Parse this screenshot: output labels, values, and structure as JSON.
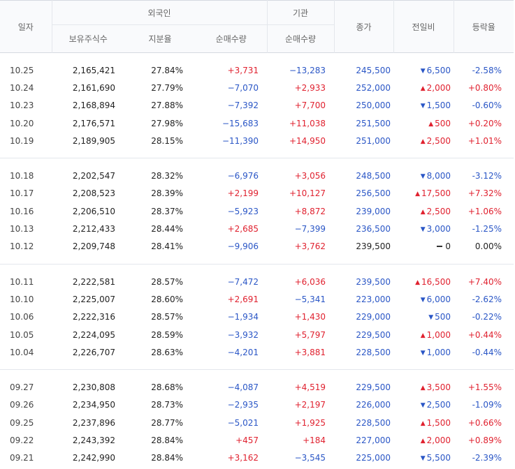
{
  "headers": {
    "date": "일자",
    "foreign_group": "외국인",
    "institution_group": "기관",
    "close": "종가",
    "change": "전일비",
    "rate": "등락율",
    "foreign_holdings": "보유주식수",
    "foreign_ratio": "지분율",
    "foreign_net": "순매수량",
    "inst_net": "순매수량"
  },
  "groups": [
    [
      {
        "date": "10.25",
        "holdings": "2,165,421",
        "ratio": "27.84%",
        "fnet": "+3,731",
        "fdir": "up",
        "inet": "−13,283",
        "idir": "down",
        "close": "245,500",
        "cdir": "down",
        "change": "6,500",
        "chdir": "down",
        "rate": "-2.58%",
        "rdir": "down"
      },
      {
        "date": "10.24",
        "holdings": "2,161,690",
        "ratio": "27.79%",
        "fnet": "−7,070",
        "fdir": "down",
        "inet": "+2,933",
        "idir": "up",
        "close": "252,000",
        "cdir": "up",
        "change": "2,000",
        "chdir": "up",
        "rate": "+0.80%",
        "rdir": "up"
      },
      {
        "date": "10.23",
        "holdings": "2,168,894",
        "ratio": "27.88%",
        "fnet": "−7,392",
        "fdir": "down",
        "inet": "+7,700",
        "idir": "up",
        "close": "250,000",
        "cdir": "down",
        "change": "1,500",
        "chdir": "down",
        "rate": "-0.60%",
        "rdir": "down"
      },
      {
        "date": "10.20",
        "holdings": "2,176,571",
        "ratio": "27.98%",
        "fnet": "−15,683",
        "fdir": "down",
        "inet": "+11,038",
        "idir": "up",
        "close": "251,500",
        "cdir": "up",
        "change": "500",
        "chdir": "up",
        "rate": "+0.20%",
        "rdir": "up"
      },
      {
        "date": "10.19",
        "holdings": "2,189,905",
        "ratio": "28.15%",
        "fnet": "−11,390",
        "fdir": "down",
        "inet": "+14,950",
        "idir": "up",
        "close": "251,000",
        "cdir": "up",
        "change": "2,500",
        "chdir": "up",
        "rate": "+1.01%",
        "rdir": "up"
      }
    ],
    [
      {
        "date": "10.18",
        "holdings": "2,202,547",
        "ratio": "28.32%",
        "fnet": "−6,976",
        "fdir": "down",
        "inet": "+3,056",
        "idir": "up",
        "close": "248,500",
        "cdir": "down",
        "change": "8,000",
        "chdir": "down",
        "rate": "-3.12%",
        "rdir": "down"
      },
      {
        "date": "10.17",
        "holdings": "2,208,523",
        "ratio": "28.39%",
        "fnet": "+2,199",
        "fdir": "up",
        "inet": "+10,127",
        "idir": "up",
        "close": "256,500",
        "cdir": "up",
        "change": "17,500",
        "chdir": "up",
        "rate": "+7.32%",
        "rdir": "up"
      },
      {
        "date": "10.16",
        "holdings": "2,206,510",
        "ratio": "28.37%",
        "fnet": "−5,923",
        "fdir": "down",
        "inet": "+8,872",
        "idir": "up",
        "close": "239,000",
        "cdir": "up",
        "change": "2,500",
        "chdir": "up",
        "rate": "+1.06%",
        "rdir": "up"
      },
      {
        "date": "10.13",
        "holdings": "2,212,433",
        "ratio": "28.44%",
        "fnet": "+2,685",
        "fdir": "up",
        "inet": "−7,399",
        "idir": "down",
        "close": "236,500",
        "cdir": "down",
        "change": "3,000",
        "chdir": "down",
        "rate": "-1.25%",
        "rdir": "down"
      },
      {
        "date": "10.12",
        "holdings": "2,209,748",
        "ratio": "28.41%",
        "fnet": "−9,906",
        "fdir": "down",
        "inet": "+3,762",
        "idir": "up",
        "close": "239,500",
        "cdir": "flat",
        "change": "0",
        "chdir": "flat",
        "rate": "0.00%",
        "rdir": "flat"
      }
    ],
    [
      {
        "date": "10.11",
        "holdings": "2,222,581",
        "ratio": "28.57%",
        "fnet": "−7,472",
        "fdir": "down",
        "inet": "+6,036",
        "idir": "up",
        "close": "239,500",
        "cdir": "up",
        "change": "16,500",
        "chdir": "up",
        "rate": "+7.40%",
        "rdir": "up"
      },
      {
        "date": "10.10",
        "holdings": "2,225,007",
        "ratio": "28.60%",
        "fnet": "+2,691",
        "fdir": "up",
        "inet": "−5,341",
        "idir": "down",
        "close": "223,000",
        "cdir": "down",
        "change": "6,000",
        "chdir": "down",
        "rate": "-2.62%",
        "rdir": "down"
      },
      {
        "date": "10.06",
        "holdings": "2,222,316",
        "ratio": "28.57%",
        "fnet": "−1,934",
        "fdir": "down",
        "inet": "+1,430",
        "idir": "up",
        "close": "229,000",
        "cdir": "down",
        "change": "500",
        "chdir": "down",
        "rate": "-0.22%",
        "rdir": "down"
      },
      {
        "date": "10.05",
        "holdings": "2,224,095",
        "ratio": "28.59%",
        "fnet": "−3,932",
        "fdir": "down",
        "inet": "+5,797",
        "idir": "up",
        "close": "229,500",
        "cdir": "up",
        "change": "1,000",
        "chdir": "up",
        "rate": "+0.44%",
        "rdir": "up"
      },
      {
        "date": "10.04",
        "holdings": "2,226,707",
        "ratio": "28.63%",
        "fnet": "−4,201",
        "fdir": "down",
        "inet": "+3,881",
        "idir": "up",
        "close": "228,500",
        "cdir": "down",
        "change": "1,000",
        "chdir": "down",
        "rate": "-0.44%",
        "rdir": "down"
      }
    ],
    [
      {
        "date": "09.27",
        "holdings": "2,230,808",
        "ratio": "28.68%",
        "fnet": "−4,087",
        "fdir": "down",
        "inet": "+4,519",
        "idir": "up",
        "close": "229,500",
        "cdir": "up",
        "change": "3,500",
        "chdir": "up",
        "rate": "+1.55%",
        "rdir": "up"
      },
      {
        "date": "09.26",
        "holdings": "2,234,950",
        "ratio": "28.73%",
        "fnet": "−2,935",
        "fdir": "down",
        "inet": "+2,197",
        "idir": "up",
        "close": "226,000",
        "cdir": "down",
        "change": "2,500",
        "chdir": "down",
        "rate": "-1.09%",
        "rdir": "down"
      },
      {
        "date": "09.25",
        "holdings": "2,237,896",
        "ratio": "28.77%",
        "fnet": "−5,021",
        "fdir": "down",
        "inet": "+1,925",
        "idir": "up",
        "close": "228,500",
        "cdir": "up",
        "change": "1,500",
        "chdir": "up",
        "rate": "+0.66%",
        "rdir": "up"
      },
      {
        "date": "09.22",
        "holdings": "2,243,392",
        "ratio": "28.84%",
        "fnet": "+457",
        "fdir": "up",
        "inet": "+184",
        "idir": "up",
        "close": "227,000",
        "cdir": "up",
        "change": "2,000",
        "chdir": "up",
        "rate": "+0.89%",
        "rdir": "up"
      },
      {
        "date": "09.21",
        "holdings": "2,242,990",
        "ratio": "28.84%",
        "fnet": "+3,162",
        "fdir": "up",
        "inet": "−3,545",
        "idir": "down",
        "close": "225,000",
        "cdir": "down",
        "change": "5,500",
        "chdir": "down",
        "rate": "-2.39%",
        "rdir": "down"
      }
    ]
  ],
  "icons": {
    "up": "triangle-up-icon",
    "down": "triangle-down-icon",
    "flat": "dash-icon"
  },
  "colors": {
    "up": "#e0212f",
    "down": "#2a56c6",
    "header_bg": "#f9fafc"
  }
}
